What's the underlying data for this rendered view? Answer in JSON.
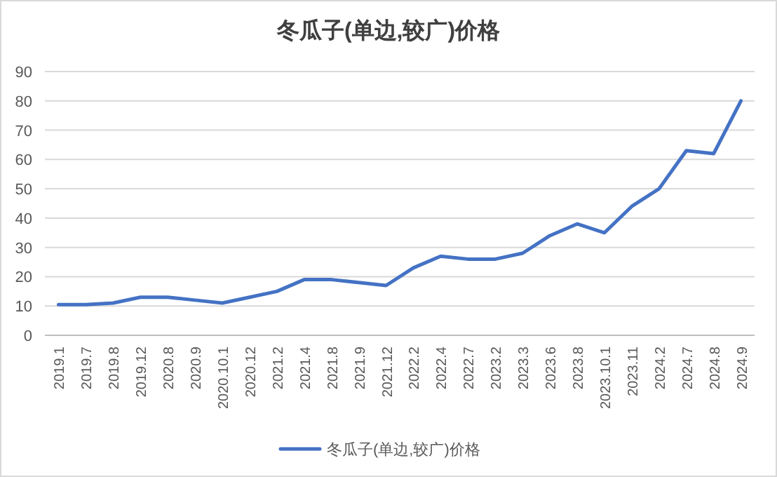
{
  "chart_data": {
    "type": "line",
    "title": "冬瓜子(单边,较广)价格",
    "categories": [
      "2019.1",
      "2019.7",
      "2019.8",
      "2019.12",
      "2020.8",
      "2020.9",
      "2020.10.1",
      "2020.12",
      "2021.2",
      "2021.4",
      "2021.8",
      "2021.9",
      "2021.12",
      "2022.2",
      "2022.4",
      "2022.7",
      "2023.2",
      "2023.3",
      "2023.6",
      "2023.8",
      "2023.10.1",
      "2023.11",
      "2024.2",
      "2024.7",
      "2024.8",
      "2024.9"
    ],
    "series": [
      {
        "name": "冬瓜子(单边,较广)价格",
        "color": "#4472c4",
        "values": [
          10.5,
          10.5,
          11,
          13,
          13,
          12,
          11,
          13,
          15,
          19,
          19,
          18,
          17,
          23,
          27,
          26,
          26,
          28,
          34,
          38,
          35,
          44,
          50,
          63,
          62,
          80
        ]
      }
    ],
    "ylim": [
      0,
      90
    ],
    "yticks": [
      0,
      10,
      20,
      30,
      40,
      50,
      60,
      70,
      80,
      90
    ],
    "grid": "y",
    "legend": "bottom",
    "marker": "none",
    "line_style": "solid"
  }
}
